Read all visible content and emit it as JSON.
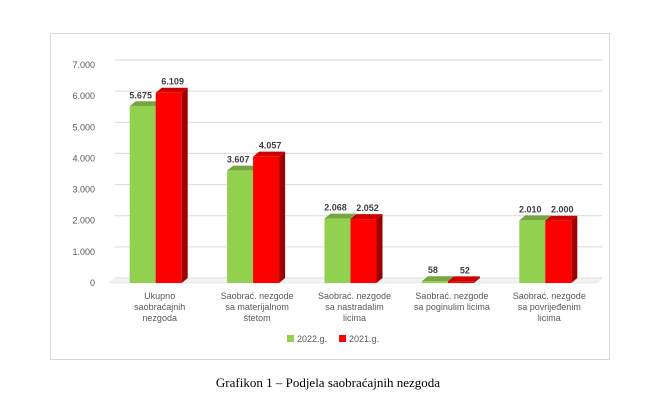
{
  "caption": "Grafikon 1 – Podjela saobraćajnih nezgoda",
  "chart_data": {
    "type": "bar",
    "style": "3d-clustered-column",
    "categories": [
      [
        "Ukupno",
        "saobraćajnih",
        "nezgoda"
      ],
      [
        "Saobrać. nezgode",
        "sa materijalnom",
        "štetom"
      ],
      [
        "Saobrać. nezgode",
        "sa nastradalim",
        "licima"
      ],
      [
        "Saobrać. nezgode",
        "sa poginulim licima"
      ],
      [
        "Saobrać. nezgode",
        "sa povrijeđenim",
        "licima"
      ]
    ],
    "series": [
      {
        "name": "2022.g.",
        "color": "#92d050",
        "values": [
          5675,
          3607,
          2068,
          58,
          2010
        ],
        "labels": [
          "5.675",
          "3.607",
          "2.068",
          "58",
          "2.010"
        ]
      },
      {
        "name": "2021.g.",
        "color": "#ff0000",
        "values": [
          6109,
          4057,
          2052,
          52,
          2000
        ],
        "labels": [
          "6.109",
          "4.057",
          "2.052",
          "52",
          "2.000"
        ]
      }
    ],
    "ylim": [
      0,
      7000
    ],
    "yticks": [
      "0",
      "1.000",
      "2.000",
      "3.000",
      "4.000",
      "5.000",
      "6.000",
      "7.000"
    ],
    "grid": true,
    "legend": "bottom",
    "xlabel": "",
    "ylabel": ""
  }
}
